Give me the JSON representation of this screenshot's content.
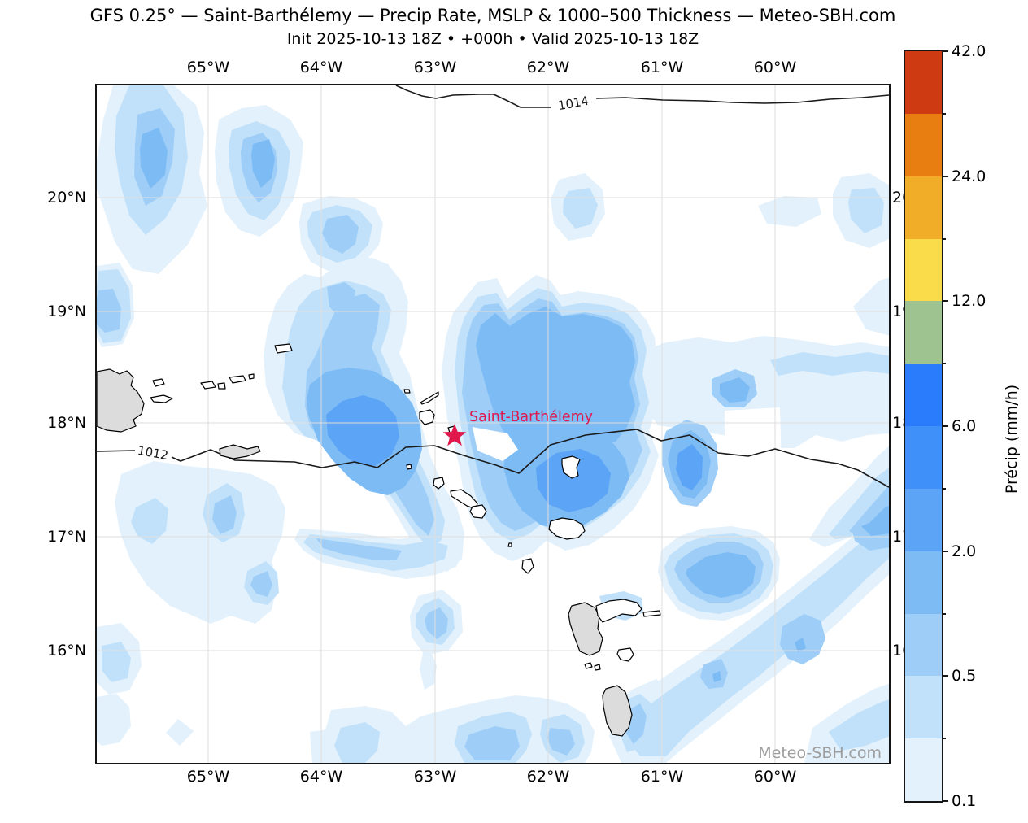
{
  "header": {
    "title": "GFS 0.25° — Saint-Barthélemy — Precip Rate, MSLP & 1000–500 Thickness — Meteo-SBH.com",
    "subtitle": "Init 2025-10-13 18Z • +000h • Valid 2025-10-13 18Z"
  },
  "axes": {
    "x_ticks": [
      "65°W",
      "64°W",
      "63°W",
      "62°W",
      "61°W",
      "60°W"
    ],
    "y_ticks": [
      "20°N",
      "19°N",
      "18°N",
      "17°N",
      "16°N"
    ]
  },
  "colorbar": {
    "label": "Précip (mm/h)",
    "levels": [
      0.1,
      0.25,
      0.5,
      1,
      2,
      4,
      6,
      9,
      12,
      18,
      24,
      30,
      42
    ],
    "boundary_labels": [
      "0.1",
      "",
      "0.5",
      "",
      "2.0",
      "",
      "6.0",
      "",
      "12.0",
      "",
      "24.0",
      "",
      "42.0"
    ],
    "colors_bottom_to_top": [
      "#E2F1FC",
      "#C1E1FA",
      "#9ECEF7",
      "#7DBBF5",
      "#5CA4F5",
      "#4090F9",
      "#2B7CFC",
      "#9FC291",
      "#FADC4A",
      "#F1AD28",
      "#E87E11",
      "#CE3B12"
    ]
  },
  "map": {
    "watermark": "Meteo-SBH.com",
    "station": {
      "name": "Saint-Barthélemy",
      "color": "#E0184C"
    },
    "isobar_labels": {
      "upper": "1014",
      "lower": "1012"
    },
    "land_color": "#DCDCDC",
    "grid_color": "#DEDEDE"
  }
}
